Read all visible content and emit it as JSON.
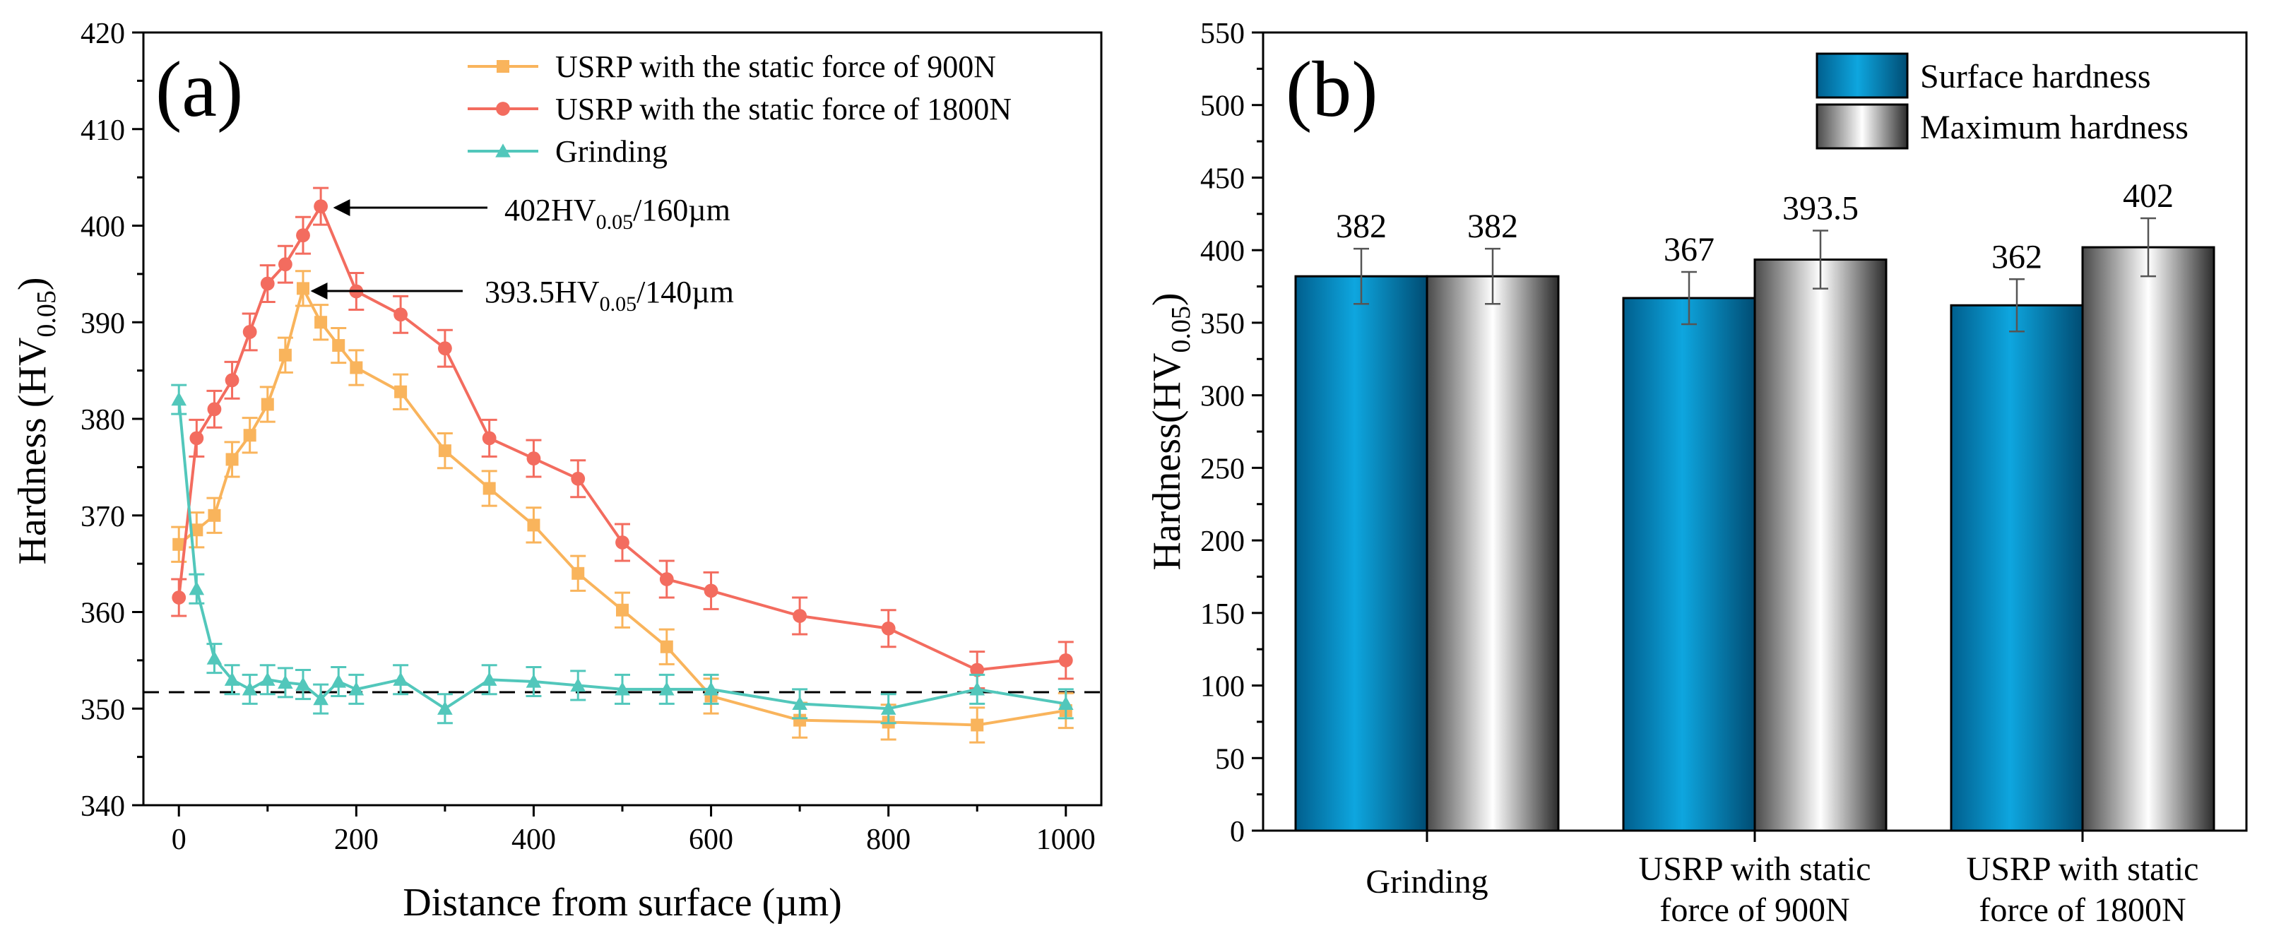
{
  "chart_data": [
    {
      "panel": "(a)",
      "type": "line",
      "xlabel": "Distance from surface (µm)",
      "ylabel": {
        "main": "Hardness (HV",
        "sub": "0.05",
        "close": ")"
      },
      "xlim": [
        -40,
        1040
      ],
      "ylim": [
        340,
        420
      ],
      "xticks": [
        0,
        200,
        400,
        600,
        800,
        1000
      ],
      "yticks": [
        340,
        350,
        360,
        370,
        380,
        390,
        400,
        410,
        420
      ],
      "reference_line": 351.7,
      "legend_position": "top-center",
      "series": [
        {
          "name": "USRP with the static force of 900N",
          "color": "#f9b45c",
          "marker": "square",
          "x": [
            0,
            20,
            40,
            60,
            80,
            100,
            120,
            140,
            160,
            180,
            200,
            250,
            300,
            350,
            400,
            450,
            500,
            550,
            600,
            700,
            800,
            900,
            1000
          ],
          "y": [
            367,
            368.5,
            370,
            375.8,
            378.3,
            381.5,
            386.6,
            393.5,
            390,
            387.6,
            385.3,
            382.8,
            376.7,
            372.8,
            369,
            364,
            360.2,
            356.4,
            351.3,
            348.8,
            348.6,
            348.3,
            349.8
          ],
          "err": 1.8
        },
        {
          "name": "USRP with the static force of 1800N",
          "color": "#f36c5f",
          "marker": "circle",
          "x": [
            0,
            20,
            40,
            60,
            80,
            100,
            120,
            140,
            160,
            200,
            250,
            300,
            350,
            400,
            450,
            500,
            550,
            600,
            700,
            800,
            900,
            1000
          ],
          "y": [
            361.5,
            378,
            381,
            384,
            389,
            394,
            396,
            399,
            402,
            393.2,
            390.8,
            387.3,
            378,
            375.9,
            373.8,
            367.2,
            363.4,
            362.2,
            359.6,
            358.3,
            354,
            355
          ],
          "err": 1.9
        },
        {
          "name": "Grinding",
          "color": "#52c7bb",
          "marker": "triangle",
          "x": [
            0,
            20,
            40,
            60,
            80,
            100,
            120,
            140,
            160,
            180,
            200,
            250,
            300,
            350,
            400,
            450,
            500,
            550,
            600,
            700,
            800,
            900,
            1000
          ],
          "y": [
            382,
            362.4,
            355.2,
            353,
            352,
            353,
            352.7,
            352.5,
            351,
            352.8,
            352,
            353,
            350,
            353,
            352.8,
            352.4,
            352,
            352,
            352,
            350.5,
            350,
            352,
            350.5
          ],
          "err": 1.5
        }
      ],
      "annotations": [
        {
          "main": "402HV",
          "sub": "0.05",
          "rest": "/160µm",
          "point": [
            160,
            402
          ]
        },
        {
          "main": "393.5HV",
          "sub": "0.05",
          "rest": "/140µm",
          "point": [
            140,
            393.5
          ]
        }
      ]
    },
    {
      "panel": "(b)",
      "type": "bar",
      "categories": [
        [
          "Grinding"
        ],
        [
          "USRP with static",
          "force of 900N"
        ],
        [
          "USRP with static",
          "force of 1800N"
        ]
      ],
      "ylabel": {
        "main": "Hardness(HV",
        "sub": "0.05",
        "close": ")"
      },
      "ylim": [
        0,
        550
      ],
      "yticks": [
        0,
        50,
        100,
        150,
        200,
        250,
        300,
        350,
        400,
        450,
        500,
        550
      ],
      "legend_position": "top-right",
      "series": [
        {
          "name": "Surface hardness",
          "values": [
            382,
            367,
            362
          ],
          "labels": [
            "382",
            "367",
            "362"
          ],
          "err": [
            19,
            18,
            18
          ]
        },
        {
          "name": "Maximum hardness",
          "values": [
            382,
            393.5,
            402
          ],
          "labels": [
            "382",
            "393.5",
            "402"
          ],
          "err": [
            19,
            20,
            20
          ]
        }
      ]
    }
  ]
}
